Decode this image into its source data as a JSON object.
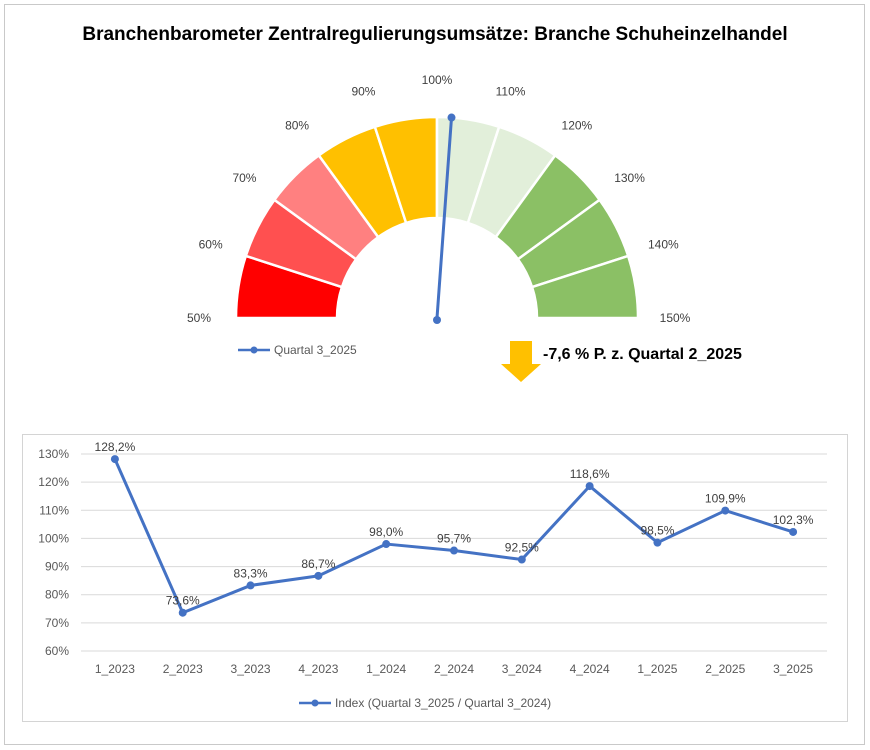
{
  "title": "Branchenbarometer Zentralregulierungsumsätze: Branche Schuheinzelhandel",
  "chart_data": [
    {
      "type": "gauge",
      "min": 50,
      "max": 150,
      "segments": [
        {
          "from": 50,
          "to": 60,
          "color": "#ff0000"
        },
        {
          "from": 60,
          "to": 70,
          "color": "#ff5050"
        },
        {
          "from": 70,
          "to": 80,
          "color": "#ff8080"
        },
        {
          "from": 80,
          "to": 90,
          "color": "#ffc000"
        },
        {
          "from": 90,
          "to": 100,
          "color": "#ffc000"
        },
        {
          "from": 100,
          "to": 110,
          "color": "#e2efda"
        },
        {
          "from": 110,
          "to": 120,
          "color": "#e2efda"
        },
        {
          "from": 120,
          "to": 130,
          "color": "#8bc065"
        },
        {
          "from": 130,
          "to": 140,
          "color": "#8bc065"
        },
        {
          "from": 140,
          "to": 150,
          "color": "#8bc065"
        }
      ],
      "tick_labels": [
        "50%",
        "60%",
        "70%",
        "80%",
        "90%",
        "100%",
        "110%",
        "120%",
        "130%",
        "140%",
        "150%"
      ],
      "needle_value": 102.3,
      "needle_color": "#4472c4",
      "legend": "Quartal 3_2025",
      "delta_text": "-7,6 % P. z. Quartal 2_2025",
      "arrow_color": "#ffc000"
    },
    {
      "type": "line",
      "categories": [
        "1_2023",
        "2_2023",
        "3_2023",
        "4_2023",
        "1_2024",
        "2_2024",
        "3_2024",
        "4_2024",
        "1_2025",
        "2_2025",
        "3_2025"
      ],
      "series": [
        {
          "name": "Index (Quartal 3_2025 / Quartal 3_2024)",
          "values": [
            128.2,
            73.6,
            83.3,
            86.7,
            98.0,
            95.7,
            92.5,
            118.6,
            98.5,
            109.9,
            102.3
          ],
          "labels": [
            "128,2%",
            "73,6%",
            "83,3%",
            "86,7%",
            "98,0%",
            "95,7%",
            "92,5%",
            "118,6%",
            "98,5%",
            "109,9%",
            "102,3%"
          ],
          "color": "#4472c4"
        }
      ],
      "ylim": [
        60,
        130
      ],
      "yticks": [
        60,
        70,
        80,
        90,
        100,
        110,
        120,
        130
      ],
      "ytick_labels": [
        "60%",
        "70%",
        "80%",
        "90%",
        "100%",
        "110%",
        "120%",
        "130%"
      ],
      "grid_color": "#d9d9d9"
    }
  ]
}
